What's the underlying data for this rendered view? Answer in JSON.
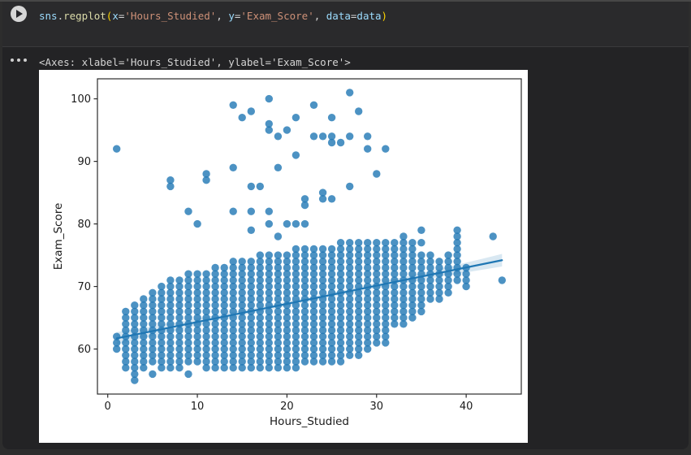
{
  "window": {
    "bg": "#2d2d2d",
    "code_band_bg": "#2a2a2c",
    "output_bg": "#232325",
    "separator": "#3a3a3c"
  },
  "code_cell": {
    "run_button": "run-cell",
    "tokens": [
      {
        "t": "sns",
        "c": "#9CDCFE"
      },
      {
        "t": ".",
        "c": "#D4D4D4"
      },
      {
        "t": "regplot",
        "c": "#DCDCAA"
      },
      {
        "t": "(",
        "c": "#FFD700"
      },
      {
        "t": "x",
        "c": "#9CDCFE"
      },
      {
        "t": "=",
        "c": "#D4D4D4"
      },
      {
        "t": "'Hours_Studied'",
        "c": "#CE9178"
      },
      {
        "t": ", ",
        "c": "#D4D4D4"
      },
      {
        "t": "y",
        "c": "#9CDCFE"
      },
      {
        "t": "=",
        "c": "#D4D4D4"
      },
      {
        "t": "'Exam_Score'",
        "c": "#CE9178"
      },
      {
        "t": ", ",
        "c": "#D4D4D4"
      },
      {
        "t": "data",
        "c": "#9CDCFE"
      },
      {
        "t": "=",
        "c": "#D4D4D4"
      },
      {
        "t": "data",
        "c": "#9CDCFE"
      },
      {
        "t": ")",
        "c": "#FFD700"
      }
    ]
  },
  "output": {
    "repr_text": "<Axes: xlabel='Hours_Studied', ylabel='Exam_Score'>"
  },
  "chart_data": {
    "type": "scatter",
    "title": "",
    "xlabel": "Hours_Studied",
    "ylabel": "Exam_Score",
    "xlim": [
      -1.15,
      46.15
    ],
    "ylim": [
      52.8,
      103.2
    ],
    "xticks": [
      0,
      10,
      20,
      30,
      40
    ],
    "yticks": [
      60,
      70,
      80,
      90,
      100
    ],
    "grid": false,
    "legend": "none",
    "marker_color": "#1f77b4",
    "marker_alpha": 0.8,
    "axis_color": "#2b2b2b",
    "tick_text_color": "#1a1a1a",
    "cloud_columns": [
      [
        1,
        60,
        62
      ],
      [
        2,
        57,
        66
      ],
      [
        3,
        56,
        67
      ],
      [
        4,
        57,
        68
      ],
      [
        5,
        58,
        69
      ],
      [
        6,
        57,
        70
      ],
      [
        7,
        57,
        71
      ],
      [
        8,
        57,
        71
      ],
      [
        9,
        58,
        72
      ],
      [
        10,
        58,
        72
      ],
      [
        11,
        57,
        72
      ],
      [
        12,
        57,
        73
      ],
      [
        13,
        57,
        73
      ],
      [
        14,
        57,
        74
      ],
      [
        15,
        57,
        74
      ],
      [
        16,
        57,
        74
      ],
      [
        17,
        57,
        75
      ],
      [
        18,
        57,
        75
      ],
      [
        19,
        57,
        75
      ],
      [
        20,
        57,
        75
      ],
      [
        21,
        57,
        76
      ],
      [
        22,
        58,
        76
      ],
      [
        23,
        58,
        76
      ],
      [
        24,
        58,
        76
      ],
      [
        25,
        58,
        76
      ],
      [
        26,
        58,
        77
      ],
      [
        27,
        59,
        77
      ],
      [
        28,
        59,
        77
      ],
      [
        29,
        60,
        77
      ],
      [
        30,
        61,
        77
      ],
      [
        31,
        61,
        77
      ],
      [
        32,
        64,
        77
      ],
      [
        33,
        64,
        77
      ],
      [
        34,
        65,
        77
      ],
      [
        35,
        66,
        75
      ],
      [
        36,
        68,
        75
      ],
      [
        37,
        68,
        74
      ],
      [
        38,
        69,
        75
      ],
      [
        39,
        71,
        77
      ],
      [
        40,
        70,
        73
      ]
    ],
    "low_points": [
      [
        3,
        55
      ],
      [
        5,
        56
      ],
      [
        9,
        56
      ]
    ],
    "outlier_points": [
      [
        1,
        92
      ],
      [
        7,
        86
      ],
      [
        7,
        87
      ],
      [
        9,
        82
      ],
      [
        10,
        80
      ],
      [
        11,
        87
      ],
      [
        11,
        88
      ],
      [
        14,
        82
      ],
      [
        14,
        89
      ],
      [
        14,
        99
      ],
      [
        15,
        97
      ],
      [
        16,
        79
      ],
      [
        16,
        82
      ],
      [
        16,
        86
      ],
      [
        16,
        98
      ],
      [
        17,
        86
      ],
      [
        18,
        80
      ],
      [
        18,
        82
      ],
      [
        18,
        95
      ],
      [
        18,
        96
      ],
      [
        18,
        100
      ],
      [
        19,
        78
      ],
      [
        19,
        89
      ],
      [
        19,
        94
      ],
      [
        20,
        80
      ],
      [
        20,
        95
      ],
      [
        21,
        80
      ],
      [
        21,
        91
      ],
      [
        21,
        97
      ],
      [
        22,
        80
      ],
      [
        22,
        83
      ],
      [
        22,
        84
      ],
      [
        23,
        94
      ],
      [
        23,
        99
      ],
      [
        24,
        84
      ],
      [
        24,
        85
      ],
      [
        24,
        94
      ],
      [
        25,
        84
      ],
      [
        25,
        93
      ],
      [
        25,
        94
      ],
      [
        25,
        97
      ],
      [
        26,
        93
      ],
      [
        27,
        86
      ],
      [
        27,
        94
      ],
      [
        27,
        101
      ],
      [
        28,
        98
      ],
      [
        29,
        92
      ],
      [
        29,
        94
      ],
      [
        30,
        88
      ],
      [
        31,
        92
      ],
      [
        33,
        78
      ],
      [
        35,
        77
      ],
      [
        35,
        79
      ],
      [
        39,
        78
      ],
      [
        39,
        79
      ],
      [
        43,
        78
      ],
      [
        44,
        71
      ]
    ],
    "regression_line": {
      "x1": 1,
      "y1": 61.7,
      "x2": 44,
      "y2": 74.2
    },
    "ci_band": {
      "halfwidth_ends": 1.0,
      "halfwidth_mid": 0.35
    }
  }
}
